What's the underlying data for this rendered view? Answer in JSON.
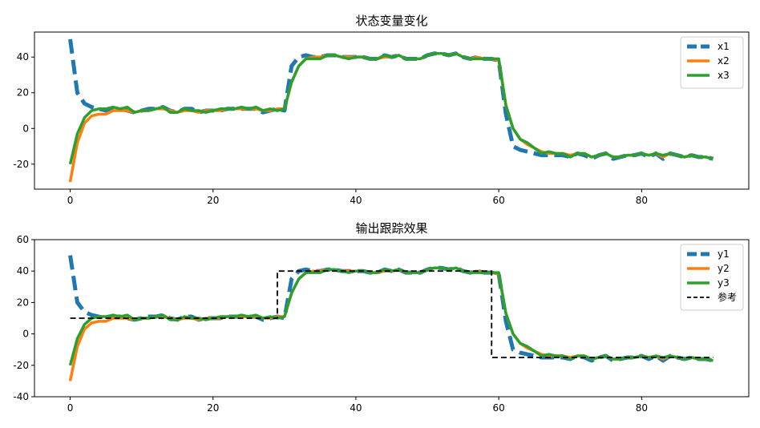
{
  "chart_data": [
    {
      "type": "line",
      "title": "状态变量变化",
      "xlabel": "",
      "ylabel": "",
      "xlim": [
        -5,
        95
      ],
      "ylim": [
        -34,
        54
      ],
      "xticks": [
        0,
        20,
        40,
        60,
        80
      ],
      "yticks": [
        -20,
        0,
        20,
        40
      ],
      "legend_position": "top-right",
      "grid": false,
      "series": [
        {
          "name": "x1",
          "color": "#1f77b4",
          "style": "dashed",
          "width": 5,
          "x": [
            0,
            1,
            2,
            3,
            4,
            5,
            6,
            7,
            8,
            9,
            10,
            11,
            12,
            13,
            14,
            15,
            16,
            17,
            18,
            19,
            20,
            21,
            22,
            23,
            24,
            25,
            26,
            27,
            28,
            29,
            30,
            31,
            32,
            33,
            34,
            35,
            36,
            37,
            38,
            39,
            40,
            41,
            42,
            43,
            44,
            45,
            46,
            47,
            48,
            49,
            50,
            51,
            52,
            53,
            54,
            55,
            56,
            57,
            58,
            59,
            60,
            61,
            62,
            63,
            64,
            65,
            66,
            67,
            68,
            69,
            70,
            71,
            72,
            73,
            74,
            75,
            76,
            77,
            78,
            79,
            80,
            81,
            82,
            83,
            84,
            85,
            86,
            87,
            88,
            89,
            90
          ],
          "values": [
            50,
            20,
            14,
            12,
            11,
            10,
            11,
            11,
            10,
            9,
            10,
            11,
            11,
            12,
            10,
            9,
            11,
            11,
            9,
            10,
            10,
            10,
            11,
            11,
            11,
            11,
            11,
            9,
            10,
            11,
            10,
            35,
            40,
            41,
            40,
            40,
            41,
            41,
            40,
            40,
            40,
            40,
            39,
            39,
            41,
            40,
            41,
            39,
            39,
            39,
            41,
            42,
            42,
            41,
            42,
            40,
            39,
            40,
            39,
            39,
            38,
            8,
            -10,
            -12,
            -13,
            -14,
            -15,
            -15,
            -15,
            -15,
            -16,
            -14,
            -15,
            -17,
            -15,
            -14,
            -17,
            -16,
            -15,
            -15,
            -14,
            -16,
            -14,
            -17,
            -14,
            -15,
            -16,
            -15,
            -16,
            -16,
            -17
          ]
        },
        {
          "name": "x2",
          "color": "#ff7f0e",
          "style": "solid",
          "width": 3.5,
          "x": [
            0,
            1,
            2,
            3,
            4,
            5,
            6,
            7,
            8,
            9,
            10,
            11,
            12,
            13,
            14,
            15,
            16,
            17,
            18,
            19,
            20,
            21,
            22,
            23,
            24,
            25,
            26,
            27,
            28,
            29,
            30,
            31,
            32,
            33,
            34,
            35,
            36,
            37,
            38,
            39,
            40,
            41,
            42,
            43,
            44,
            45,
            46,
            47,
            48,
            49,
            50,
            51,
            52,
            53,
            54,
            55,
            56,
            57,
            58,
            59,
            60,
            61,
            62,
            63,
            64,
            65,
            66,
            67,
            68,
            69,
            70,
            71,
            72,
            73,
            74,
            75,
            76,
            77,
            78,
            79,
            80,
            81,
            82,
            83,
            84,
            85,
            86,
            87,
            88,
            89,
            90
          ],
          "values": [
            -30,
            -8,
            3,
            7,
            8,
            8,
            10,
            10,
            10,
            9,
            10,
            10,
            11,
            11,
            10,
            9,
            10,
            10,
            9,
            10,
            10,
            10,
            11,
            11,
            11,
            11,
            11,
            10,
            10,
            11,
            11,
            26,
            35,
            39,
            40,
            40,
            41,
            41,
            40,
            40,
            40,
            40,
            39,
            39,
            40,
            40,
            41,
            39,
            39,
            39,
            41,
            42,
            42,
            41,
            42,
            40,
            39,
            40,
            39,
            39,
            38,
            13,
            0,
            -6,
            -9,
            -11,
            -13,
            -14,
            -14,
            -14,
            -15,
            -14,
            -14,
            -16,
            -15,
            -14,
            -16,
            -16,
            -15,
            -15,
            -14,
            -15,
            -14,
            -16,
            -14,
            -15,
            -16,
            -15,
            -16,
            -16,
            -17
          ]
        },
        {
          "name": "x3",
          "color": "#2ca02c",
          "style": "solid",
          "width": 3.5,
          "x": [
            0,
            1,
            2,
            3,
            4,
            5,
            6,
            7,
            8,
            9,
            10,
            11,
            12,
            13,
            14,
            15,
            16,
            17,
            18,
            19,
            20,
            21,
            22,
            23,
            24,
            25,
            26,
            27,
            28,
            29,
            30,
            31,
            32,
            33,
            34,
            35,
            36,
            37,
            38,
            39,
            40,
            41,
            42,
            43,
            44,
            45,
            46,
            47,
            48,
            49,
            50,
            51,
            52,
            53,
            54,
            55,
            56,
            57,
            58,
            59,
            60,
            61,
            62,
            63,
            64,
            65,
            66,
            67,
            68,
            69,
            70,
            71,
            72,
            73,
            74,
            75,
            76,
            77,
            78,
            79,
            80,
            81,
            82,
            83,
            84,
            85,
            86,
            87,
            88,
            89,
            90
          ],
          "values": [
            -20,
            -3,
            6,
            10,
            11,
            11,
            12,
            11,
            12,
            9,
            10,
            10,
            11,
            12,
            9,
            9,
            11,
            10,
            10,
            9,
            10,
            11,
            11,
            11,
            12,
            11,
            12,
            10,
            11,
            10,
            11,
            26,
            35,
            39,
            39,
            39,
            41,
            41,
            40,
            39,
            40,
            40,
            39,
            39,
            41,
            40,
            41,
            39,
            39,
            39,
            41,
            42,
            42,
            41,
            42,
            40,
            39,
            39,
            39,
            39,
            39,
            13,
            0,
            -6,
            -8,
            -11,
            -14,
            -13,
            -14,
            -14,
            -16,
            -14,
            -14,
            -16,
            -15,
            -14,
            -16,
            -16,
            -15,
            -15,
            -14,
            -15,
            -14,
            -15,
            -14,
            -15,
            -16,
            -15,
            -16,
            -16,
            -17
          ]
        }
      ]
    },
    {
      "type": "line",
      "title": "输出跟踪效果",
      "xlabel": "",
      "ylabel": "",
      "xlim": [
        -5,
        95
      ],
      "ylim": [
        -40,
        60
      ],
      "xticks": [
        0,
        20,
        40,
        60,
        80
      ],
      "yticks": [
        -40,
        -20,
        0,
        20,
        40,
        60
      ],
      "legend_position": "top-right",
      "grid": false,
      "series": [
        {
          "name": "y1",
          "color": "#1f77b4",
          "style": "dashed",
          "width": 5,
          "x": [
            0,
            1,
            2,
            3,
            4,
            5,
            6,
            7,
            8,
            9,
            10,
            11,
            12,
            13,
            14,
            15,
            16,
            17,
            18,
            19,
            20,
            21,
            22,
            23,
            24,
            25,
            26,
            27,
            28,
            29,
            30,
            31,
            32,
            33,
            34,
            35,
            36,
            37,
            38,
            39,
            40,
            41,
            42,
            43,
            44,
            45,
            46,
            47,
            48,
            49,
            50,
            51,
            52,
            53,
            54,
            55,
            56,
            57,
            58,
            59,
            60,
            61,
            62,
            63,
            64,
            65,
            66,
            67,
            68,
            69,
            70,
            71,
            72,
            73,
            74,
            75,
            76,
            77,
            78,
            79,
            80,
            81,
            82,
            83,
            84,
            85,
            86,
            87,
            88,
            89,
            90
          ],
          "values": [
            50,
            20,
            14,
            12,
            11,
            10,
            11,
            11,
            10,
            9,
            10,
            11,
            11,
            12,
            10,
            9,
            11,
            11,
            9,
            10,
            10,
            10,
            11,
            11,
            11,
            11,
            11,
            9,
            10,
            11,
            10,
            35,
            40,
            41,
            40,
            40,
            41,
            41,
            40,
            40,
            40,
            40,
            39,
            39,
            41,
            40,
            41,
            39,
            39,
            39,
            41,
            42,
            42,
            41,
            42,
            40,
            39,
            40,
            39,
            39,
            38,
            8,
            -10,
            -12,
            -13,
            -14,
            -15,
            -15,
            -15,
            -15,
            -16,
            -14,
            -15,
            -17,
            -15,
            -14,
            -17,
            -16,
            -15,
            -15,
            -14,
            -16,
            -14,
            -17,
            -14,
            -15,
            -16,
            -15,
            -16,
            -16,
            -17
          ]
        },
        {
          "name": "y2",
          "color": "#ff7f0e",
          "style": "solid",
          "width": 3.5,
          "x": [
            0,
            1,
            2,
            3,
            4,
            5,
            6,
            7,
            8,
            9,
            10,
            11,
            12,
            13,
            14,
            15,
            16,
            17,
            18,
            19,
            20,
            21,
            22,
            23,
            24,
            25,
            26,
            27,
            28,
            29,
            30,
            31,
            32,
            33,
            34,
            35,
            36,
            37,
            38,
            39,
            40,
            41,
            42,
            43,
            44,
            45,
            46,
            47,
            48,
            49,
            50,
            51,
            52,
            53,
            54,
            55,
            56,
            57,
            58,
            59,
            60,
            61,
            62,
            63,
            64,
            65,
            66,
            67,
            68,
            69,
            70,
            71,
            72,
            73,
            74,
            75,
            76,
            77,
            78,
            79,
            80,
            81,
            82,
            83,
            84,
            85,
            86,
            87,
            88,
            89,
            90
          ],
          "values": [
            -30,
            -8,
            3,
            7,
            8,
            8,
            10,
            10,
            10,
            9,
            10,
            10,
            11,
            11,
            10,
            9,
            10,
            10,
            9,
            10,
            10,
            10,
            11,
            11,
            11,
            11,
            11,
            10,
            10,
            11,
            11,
            26,
            35,
            39,
            40,
            40,
            41,
            41,
            40,
            40,
            40,
            40,
            39,
            39,
            40,
            40,
            41,
            39,
            39,
            39,
            41,
            42,
            42,
            41,
            42,
            40,
            39,
            40,
            39,
            39,
            38,
            13,
            0,
            -6,
            -9,
            -11,
            -13,
            -14,
            -14,
            -14,
            -15,
            -14,
            -14,
            -16,
            -15,
            -14,
            -16,
            -16,
            -15,
            -15,
            -14,
            -15,
            -14,
            -16,
            -14,
            -15,
            -16,
            -15,
            -16,
            -16,
            -17
          ]
        },
        {
          "name": "y3",
          "color": "#2ca02c",
          "style": "solid",
          "width": 3.5,
          "x": [
            0,
            1,
            2,
            3,
            4,
            5,
            6,
            7,
            8,
            9,
            10,
            11,
            12,
            13,
            14,
            15,
            16,
            17,
            18,
            19,
            20,
            21,
            22,
            23,
            24,
            25,
            26,
            27,
            28,
            29,
            30,
            31,
            32,
            33,
            34,
            35,
            36,
            37,
            38,
            39,
            40,
            41,
            42,
            43,
            44,
            45,
            46,
            47,
            48,
            49,
            50,
            51,
            52,
            53,
            54,
            55,
            56,
            57,
            58,
            59,
            60,
            61,
            62,
            63,
            64,
            65,
            66,
            67,
            68,
            69,
            70,
            71,
            72,
            73,
            74,
            75,
            76,
            77,
            78,
            79,
            80,
            81,
            82,
            83,
            84,
            85,
            86,
            87,
            88,
            89,
            90
          ],
          "values": [
            -20,
            -3,
            6,
            10,
            11,
            11,
            12,
            11,
            12,
            9,
            10,
            10,
            11,
            12,
            9,
            9,
            11,
            10,
            10,
            9,
            10,
            11,
            11,
            11,
            12,
            11,
            12,
            10,
            11,
            10,
            11,
            26,
            35,
            39,
            39,
            39,
            41,
            41,
            40,
            39,
            40,
            40,
            39,
            39,
            41,
            40,
            41,
            39,
            39,
            39,
            41,
            42,
            42,
            41,
            42,
            40,
            39,
            39,
            39,
            39,
            39,
            13,
            0,
            -6,
            -8,
            -11,
            -14,
            -13,
            -14,
            -14,
            -16,
            -14,
            -14,
            -16,
            -15,
            -14,
            -16,
            -16,
            -15,
            -15,
            -14,
            -15,
            -14,
            -15,
            -14,
            -15,
            -16,
            -15,
            -16,
            -16,
            -17
          ]
        },
        {
          "name": "参考",
          "color": "#000000",
          "style": "dashed-thin",
          "width": 1.8,
          "x": [
            0,
            29,
            29,
            59,
            59,
            90
          ],
          "values": [
            10,
            10,
            40,
            40,
            -15,
            -15
          ]
        }
      ]
    }
  ]
}
